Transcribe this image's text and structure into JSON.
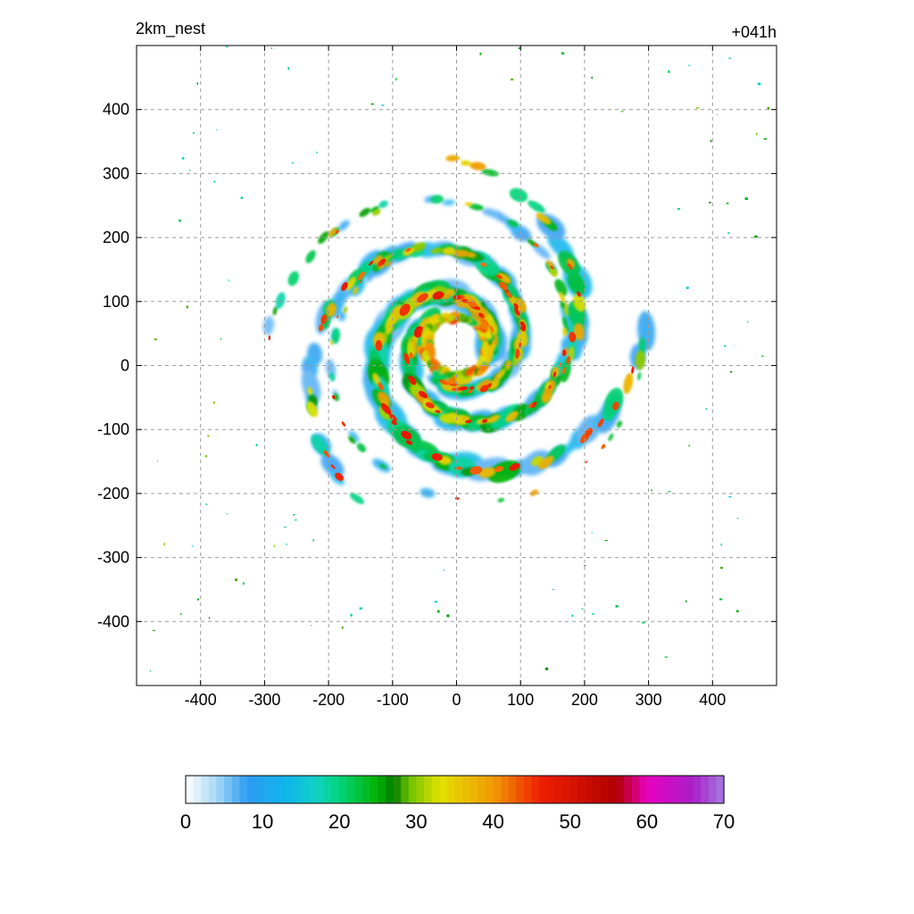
{
  "chart_data": {
    "type": "heatmap",
    "title_left": "2km_nest",
    "title_right": "+041h",
    "xlabel": "",
    "ylabel": "",
    "xlim": [
      -500,
      500
    ],
    "ylim": [
      -500,
      500
    ],
    "x_ticks": [
      -400,
      -300,
      -200,
      -100,
      0,
      100,
      200,
      300,
      400
    ],
    "y_ticks": [
      400,
      300,
      200,
      100,
      0,
      -100,
      -200,
      -300,
      -400
    ],
    "grid": true,
    "grid_style": "dashed-gray",
    "colorbar": {
      "orientation": "horizontal",
      "placement": "bottom",
      "min": 0,
      "max": 70,
      "ticks": [
        0,
        10,
        20,
        30,
        40,
        50,
        60,
        70
      ],
      "stops": [
        {
          "value": 0,
          "color": "#ffffff"
        },
        {
          "value": 4,
          "color": "#a6d8f6"
        },
        {
          "value": 8,
          "color": "#2e9cf2"
        },
        {
          "value": 13,
          "color": "#0fb4ec"
        },
        {
          "value": 17,
          "color": "#12d2c6"
        },
        {
          "value": 20,
          "color": "#00d47a"
        },
        {
          "value": 25,
          "color": "#00b000"
        },
        {
          "value": 27,
          "color": "#007a00"
        },
        {
          "value": 29,
          "color": "#6cc000"
        },
        {
          "value": 33,
          "color": "#e2e200"
        },
        {
          "value": 40,
          "color": "#f09a00"
        },
        {
          "value": 46,
          "color": "#f02000"
        },
        {
          "value": 56,
          "color": "#b00000"
        },
        {
          "value": 60,
          "color": "#e800c0"
        },
        {
          "value": 66,
          "color": "#a820c8"
        },
        {
          "value": 70,
          "color": "#a67ae0"
        }
      ]
    },
    "features": {
      "eye_center": [
        0,
        30
      ],
      "eyewall_radius_km": 45,
      "peak_value": 48
    }
  }
}
